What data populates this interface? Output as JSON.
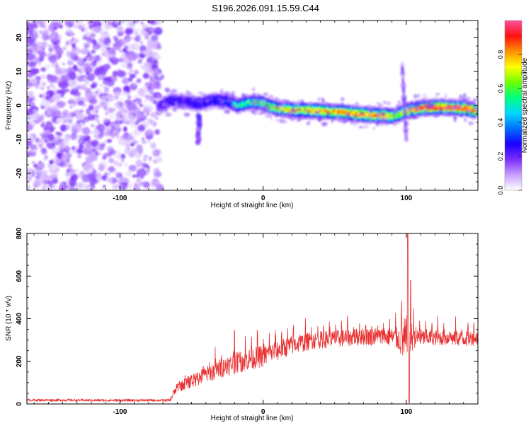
{
  "figure_title": "S196.2026.091.15.59.C44",
  "chart_data": [
    {
      "type": "heatmap",
      "name": "spectrogram",
      "xlabel": "Height of straight line (km)",
      "ylabel": "Frequency (Hz)",
      "xlim": [
        -165,
        150
      ],
      "ylim": [
        -25,
        25
      ],
      "x_ticks": [
        -100,
        0,
        100
      ],
      "x_tick_labels": [
        "-100",
        "0",
        "100"
      ],
      "y_ticks": [
        -20,
        -10,
        0,
        10,
        20
      ],
      "y_tick_labels": [
        "-20",
        "-10",
        "0",
        "10",
        "20"
      ],
      "colorbar": {
        "label": "Normalized spectral amplitude",
        "range": [
          0,
          1
        ],
        "ticks": [
          0.0,
          0.2,
          0.4,
          0.6,
          0.8
        ],
        "tick_labels": [
          "0.0",
          "0.2",
          "0.4",
          "0.6",
          "0.8"
        ],
        "colors": [
          "#ffffff",
          "#c8a0ff",
          "#7a2cff",
          "#1a00ff",
          "#0070ff",
          "#00d8ff",
          "#00ff80",
          "#70ff00",
          "#ffff00",
          "#ff9000",
          "#ff1010",
          "#ff50a0"
        ]
      },
      "noise_region": {
        "x_range": [
          -165,
          -72
        ],
        "y_range": [
          -25,
          25
        ],
        "typical_amplitude": 0.12
      },
      "ridge": {
        "x": [
          -73,
          -65,
          -55,
          -45,
          -35,
          -25,
          -18,
          -10,
          -2,
          5,
          15,
          25,
          35,
          45,
          55,
          65,
          75,
          85,
          92,
          98,
          102,
          110,
          120,
          130,
          140,
          148
        ],
        "frequency": [
          -0.5,
          1.5,
          1.0,
          0.5,
          1.5,
          1.2,
          0.0,
          0.8,
          1.0,
          -0.5,
          -1.2,
          -1.5,
          -1.5,
          -1.8,
          -2.0,
          -2.5,
          -2.8,
          -3.0,
          -3.2,
          -2.0,
          -1.5,
          -0.8,
          -0.5,
          -0.6,
          -0.8,
          -1.5
        ],
        "amplitude": [
          0.3,
          0.35,
          0.35,
          0.4,
          0.4,
          0.45,
          0.5,
          0.55,
          0.6,
          0.65,
          0.7,
          0.75,
          0.75,
          0.8,
          0.8,
          0.82,
          0.82,
          0.8,
          0.6,
          0.7,
          0.75,
          0.85,
          0.9,
          0.9,
          0.88,
          0.85
        ]
      },
      "spurs": [
        {
          "x": -45,
          "frequency": [
            -3,
            -11
          ],
          "amplitude": 0.2
        },
        {
          "x": 100,
          "frequency": [
            -10,
            12
          ],
          "amplitude": 0.15
        }
      ]
    },
    {
      "type": "line",
      "name": "snr",
      "xlabel": "Height of straight line (km)",
      "ylabel": "SNR (10 * v/v)",
      "xlim": [
        -165,
        150
      ],
      "ylim": [
        0,
        800
      ],
      "x_ticks": [
        -100,
        0,
        100
      ],
      "x_tick_labels": [
        "-100",
        "0",
        "100"
      ],
      "y_ticks": [
        0,
        200,
        400,
        600,
        800
      ],
      "y_tick_labels": [
        "0",
        "200",
        "400",
        "600",
        "800"
      ],
      "color": "#e83030",
      "envelope": {
        "x": [
          -165,
          -140,
          -120,
          -100,
          -80,
          -65,
          -60,
          -50,
          -40,
          -30,
          -20,
          -10,
          0,
          10,
          20,
          30,
          40,
          50,
          60,
          70,
          80,
          90,
          95,
          100,
          105,
          110,
          120,
          130,
          140,
          150
        ],
        "mean": [
          18,
          18,
          17,
          17,
          17,
          17,
          80,
          110,
          140,
          170,
          195,
          215,
          230,
          255,
          280,
          295,
          305,
          310,
          315,
          320,
          320,
          318,
          310,
          300,
          320,
          315,
          315,
          312,
          310,
          315
        ],
        "spread": [
          10,
          10,
          10,
          10,
          10,
          10,
          50,
          70,
          90,
          100,
          110,
          115,
          115,
          110,
          100,
          95,
          90,
          90,
          90,
          90,
          95,
          100,
          130,
          300,
          120,
          90,
          80,
          80,
          80,
          80
        ]
      },
      "spikes": [
        {
          "x": -20,
          "value": 345
        },
        {
          "x": 101,
          "value": 800
        },
        {
          "x": 103,
          "value": 580
        },
        {
          "x": 102,
          "value": 5
        }
      ]
    }
  ]
}
